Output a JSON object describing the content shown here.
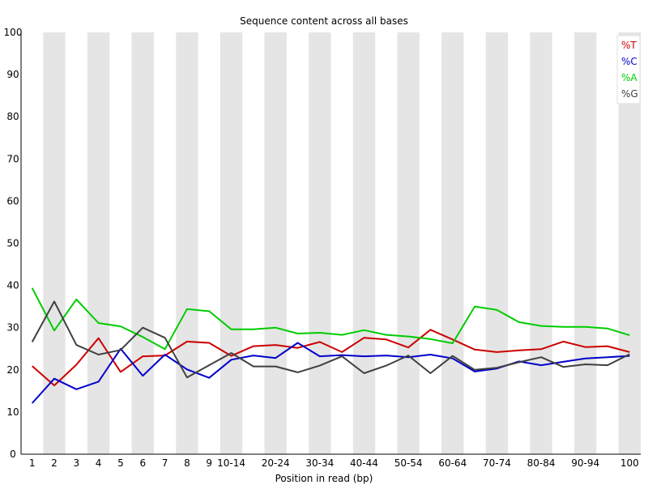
{
  "chart_data": {
    "type": "line",
    "title": "Sequence content across all bases",
    "xlabel": "Position in read (bp)",
    "ylabel": "",
    "ylim": [
      0,
      100
    ],
    "yticks": [
      0,
      10,
      20,
      30,
      40,
      50,
      60,
      70,
      80,
      90,
      100
    ],
    "grid": "alternating vertical bands",
    "legend_position": "top-right",
    "categories": [
      "1",
      "2",
      "3",
      "4",
      "5",
      "6",
      "7",
      "8",
      "9",
      "10-14",
      "15-19",
      "20-24",
      "25-29",
      "30-34",
      "35-39",
      "40-44",
      "45-49",
      "50-54",
      "55-59",
      "60-64",
      "65-69",
      "70-74",
      "75-79",
      "80-84",
      "85-89",
      "90-94",
      "95-99",
      "100"
    ],
    "tick_labels": [
      "1",
      "2",
      "3",
      "4",
      "5",
      "6",
      "7",
      "8",
      "9",
      "10-14",
      "",
      "20-24",
      "",
      "30-34",
      "",
      "40-44",
      "",
      "50-54",
      "",
      "60-64",
      "",
      "70-74",
      "",
      "80-84",
      "",
      "90-94",
      "",
      "100"
    ],
    "series": [
      {
        "name": "%T",
        "color": "#cc0000",
        "values": [
          20.9,
          16.3,
          21.2,
          27.5,
          19.5,
          23.2,
          23.4,
          26.7,
          26.4,
          23.3,
          25.6,
          25.9,
          25.2,
          26.6,
          24.2,
          27.6,
          27.2,
          25.3,
          29.5,
          27.2,
          24.8,
          24.2,
          24.6,
          24.9,
          26.7,
          25.4,
          25.6,
          24.2
        ]
      },
      {
        "name": "%C",
        "color": "#0000cc",
        "values": [
          12.1,
          17.9,
          15.4,
          17.2,
          25.0,
          18.6,
          23.6,
          20.1,
          18.1,
          22.4,
          23.4,
          22.8,
          26.4,
          23.2,
          23.5,
          23.2,
          23.4,
          23.0,
          23.6,
          22.7,
          19.6,
          20.3,
          22.0,
          21.1,
          21.9,
          22.7,
          23.0,
          23.3
        ]
      },
      {
        "name": "%A",
        "color": "#00cc00",
        "values": [
          39.4,
          29.3,
          36.7,
          31.1,
          30.3,
          27.8,
          24.9,
          34.4,
          33.9,
          29.6,
          29.6,
          30.0,
          28.6,
          28.8,
          28.3,
          29.4,
          28.3,
          27.9,
          27.3,
          26.3,
          35.0,
          34.2,
          31.3,
          30.4,
          30.2,
          30.2,
          29.8,
          28.2
        ]
      },
      {
        "name": "%G",
        "color": "#404040",
        "values": [
          26.6,
          36.2,
          25.9,
          23.6,
          24.7,
          30.0,
          27.6,
          18.2,
          21.1,
          24.0,
          20.8,
          20.8,
          19.4,
          21.0,
          23.2,
          19.2,
          21.0,
          23.4,
          19.2,
          23.3,
          20.0,
          20.5,
          21.8,
          23.0,
          20.7,
          21.3,
          21.1,
          23.7
        ]
      }
    ]
  }
}
